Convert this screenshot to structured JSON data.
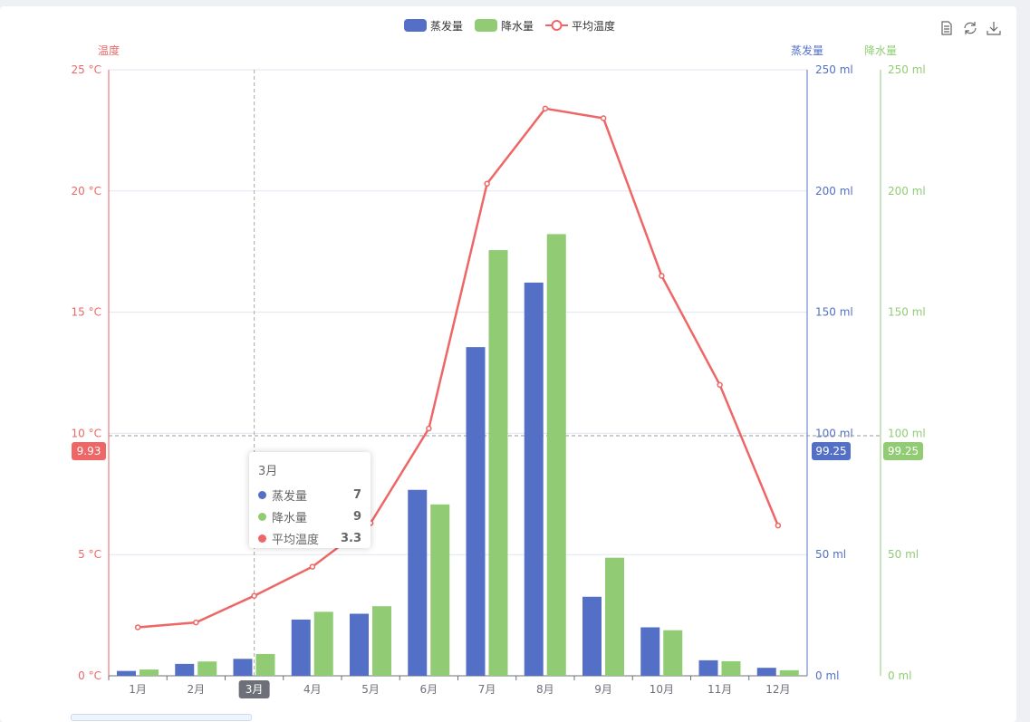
{
  "toolbox": {
    "icons": [
      "data-view-icon",
      "restore-icon",
      "save-image-icon"
    ]
  },
  "chart_data": {
    "type": "bar+line",
    "categories": [
      "1月",
      "2月",
      "3月",
      "4月",
      "5月",
      "6月",
      "7月",
      "8月",
      "9月",
      "10月",
      "11月",
      "12月"
    ],
    "legend": {
      "position": "top-center",
      "items": [
        "蒸发量",
        "降水量",
        "平均温度"
      ]
    },
    "series": [
      {
        "name": "蒸发量",
        "type": "bar",
        "axis": "蒸发量",
        "color": "#5470c6",
        "values": [
          2.0,
          4.9,
          7.0,
          23.2,
          25.6,
          76.7,
          135.6,
          162.2,
          32.6,
          20.0,
          6.4,
          3.3
        ]
      },
      {
        "name": "降水量",
        "type": "bar",
        "axis": "降水量",
        "color": "#91cc75",
        "values": [
          2.6,
          5.9,
          9.0,
          26.4,
          28.7,
          70.7,
          175.6,
          182.2,
          48.7,
          18.8,
          6.0,
          2.3
        ]
      },
      {
        "name": "平均温度",
        "type": "line",
        "axis": "温度",
        "color": "#ee6666",
        "values": [
          2.0,
          2.2,
          3.3,
          4.5,
          6.3,
          10.2,
          20.3,
          23.4,
          23.0,
          16.5,
          12.0,
          6.2
        ]
      }
    ],
    "axes": [
      {
        "name": "温度",
        "position": "left",
        "range": [
          0,
          25
        ],
        "ticks": [
          "0 °C",
          "5 °C",
          "10 °C",
          "15 °C",
          "20 °C",
          "25 °C"
        ],
        "color": "#ee6666"
      },
      {
        "name": "蒸发量",
        "position": "right",
        "range": [
          0,
          250
        ],
        "ticks": [
          "0 ml",
          "50 ml",
          "100 ml",
          "150 ml",
          "200 ml",
          "250 ml"
        ],
        "color": "#5470c6"
      },
      {
        "name": "降水量",
        "position": "right-offset",
        "range": [
          0,
          250
        ],
        "ticks": [
          "0 ml",
          "50 ml",
          "100 ml",
          "150 ml",
          "200 ml",
          "250 ml"
        ],
        "color": "#91cc75"
      }
    ],
    "grid": true,
    "pointer": {
      "category": "3月",
      "left_label": "9.93",
      "right_label": "99.25",
      "right2_label": "99.25"
    },
    "tooltip": {
      "title": "3月",
      "rows": [
        {
          "name": "蒸发量",
          "value": "7",
          "color": "#5470c6"
        },
        {
          "name": "降水量",
          "value": "9",
          "color": "#91cc75"
        },
        {
          "name": "平均温度",
          "value": "3.3",
          "color": "#ee6666"
        }
      ]
    }
  }
}
